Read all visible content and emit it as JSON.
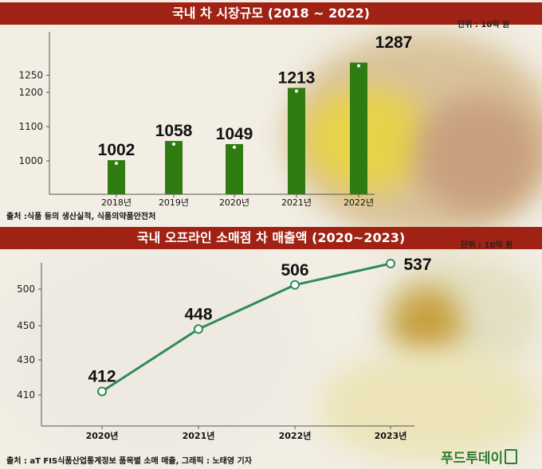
{
  "chart_data": [
    {
      "type": "bar",
      "title": "국내 차 시장규모 (2018 ~ 2022)",
      "unit": "단위 : 10억 원",
      "categories": [
        "2018년",
        "2019년",
        "2020년",
        "2021년",
        "2022년"
      ],
      "values": [
        1002,
        1058,
        1049,
        1213,
        1287
      ],
      "ylabel": "",
      "yticks": [
        1000,
        1100,
        1200,
        1250
      ],
      "color": "#2f7d12",
      "source": "출처 :식품 등의 생산실적, 식품의약품안전처"
    },
    {
      "type": "line",
      "title": "국내 오프라인 소매점 차 매출액 (2020~2023)",
      "unit": "단위 : 10억 원",
      "categories": [
        "2020년",
        "2021년",
        "2022년",
        "2023년"
      ],
      "values": [
        412,
        448,
        506,
        537
      ],
      "ylabel": "",
      "yticks": [
        410,
        430,
        450,
        500
      ],
      "color": "#2e8b57",
      "source": "출처 : aT FIS식품산업통계정보 품목별 소매 매출, 그래픽 : 노태영 기자"
    }
  ],
  "logo": "푸드투데이"
}
